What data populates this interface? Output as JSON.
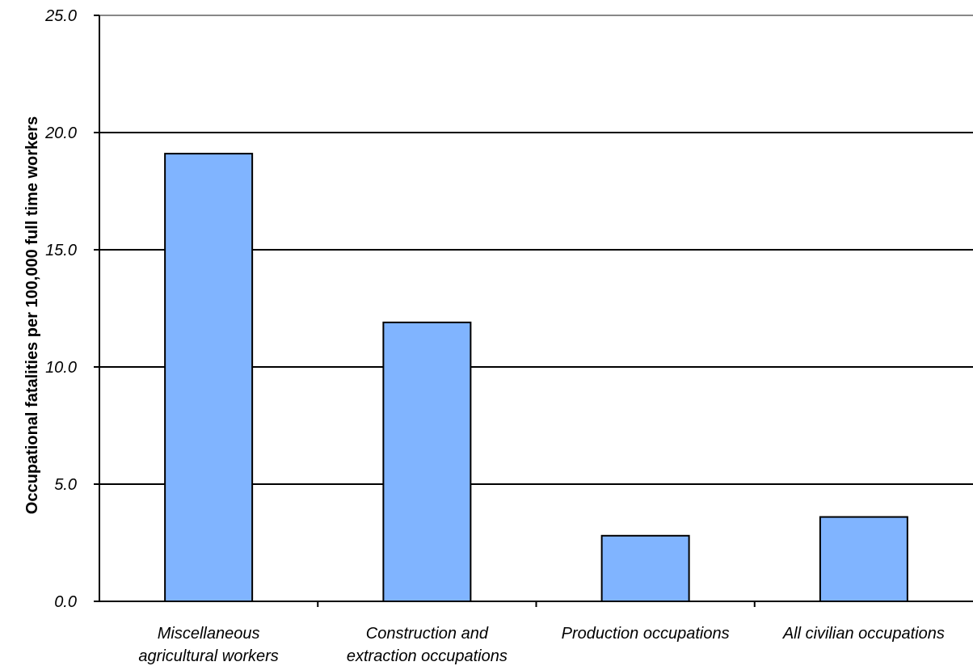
{
  "chart_data": {
    "type": "bar",
    "title": "",
    "xlabel": "",
    "ylabel": "Occupational fatalities per 100,000 full time workers",
    "ylim": [
      0,
      25
    ],
    "yticks": [
      "0.0",
      "5.0",
      "10.0",
      "15.0",
      "20.0",
      "25.0"
    ],
    "ytick_values": [
      0,
      5,
      10,
      15,
      20,
      25
    ],
    "grid": true,
    "legend": "none",
    "categories": [
      [
        "Miscellaneous",
        "agricultural workers"
      ],
      [
        "Construction and",
        "extraction occupations"
      ],
      [
        "Production occupations"
      ],
      [
        "All civilian occupations"
      ]
    ],
    "values": [
      19.1,
      11.9,
      2.8,
      3.6
    ],
    "colors": {
      "bar_fill": "#80b4ff",
      "bar_stroke": "#000000",
      "grid": "#000000",
      "top_grid": "#888888"
    }
  }
}
